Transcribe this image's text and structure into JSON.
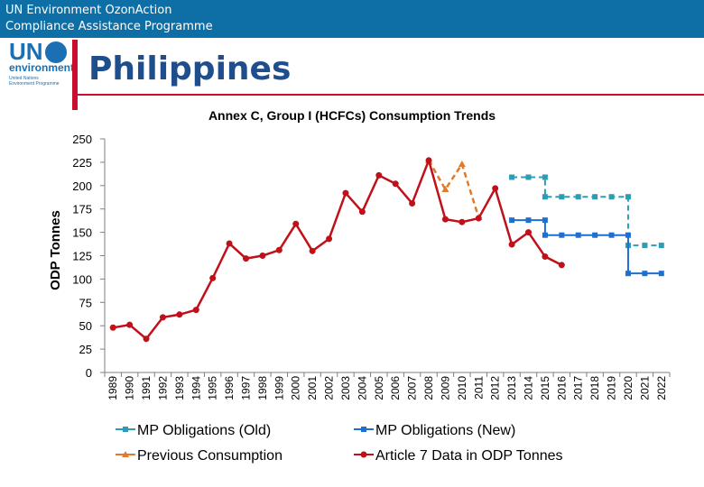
{
  "header": {
    "line1": "UN Environment OzonAction",
    "line2": "Compliance Assistance Programme"
  },
  "logo": {
    "un": "UN",
    "environment": "environment",
    "small1": "United Nations",
    "small2": "Environment Programme"
  },
  "country": "Philippines",
  "colors": {
    "topbar": "#0d6fa6",
    "accent_red": "#c8102e",
    "mp_old": "#2e9db4",
    "mp_new": "#1f6fd1",
    "previous": "#e07b2e",
    "article7": "#c0101a"
  },
  "chart_data": {
    "type": "line",
    "title": "Annex C, Group I (HCFCs) Consumption Trends",
    "ylabel": "ODP Tonnes",
    "xlabel": "",
    "ylim": [
      0,
      250
    ],
    "yticks": [
      "0",
      "25",
      "50",
      "75",
      "100",
      "125",
      "150",
      "175",
      "200",
      "225",
      "250"
    ],
    "categories": [
      "1989",
      "1990",
      "1991",
      "1992",
      "1993",
      "1994",
      "1995",
      "1996",
      "1997",
      "1998",
      "1999",
      "2000",
      "2001",
      "2002",
      "2003",
      "2004",
      "2005",
      "2006",
      "2007",
      "2008",
      "2009",
      "2010",
      "2011",
      "2012",
      "2013",
      "2014",
      "2015",
      "2016",
      "2017",
      "2018",
      "2019",
      "2020",
      "2021",
      "2022"
    ],
    "grid": false,
    "series": [
      {
        "name": "MP Obligations (Old)",
        "style": "dashed-step",
        "points": [
          {
            "x": "2013",
            "y": 209
          },
          {
            "x": "2014",
            "y": 209
          },
          {
            "x": "2015",
            "y": 209
          },
          {
            "x": "2015",
            "y": 188
          },
          {
            "x": "2016",
            "y": 188
          },
          {
            "x": "2017",
            "y": 188
          },
          {
            "x": "2018",
            "y": 188
          },
          {
            "x": "2019",
            "y": 188
          },
          {
            "x": "2020",
            "y": 188
          },
          {
            "x": "2020",
            "y": 136
          },
          {
            "x": "2021",
            "y": 136
          },
          {
            "x": "2022",
            "y": 136
          }
        ]
      },
      {
        "name": "MP Obligations (New)",
        "style": "solid-step",
        "points": [
          {
            "x": "2013",
            "y": 163
          },
          {
            "x": "2014",
            "y": 163
          },
          {
            "x": "2015",
            "y": 163
          },
          {
            "x": "2015",
            "y": 147
          },
          {
            "x": "2016",
            "y": 147
          },
          {
            "x": "2017",
            "y": 147
          },
          {
            "x": "2018",
            "y": 147
          },
          {
            "x": "2019",
            "y": 147
          },
          {
            "x": "2020",
            "y": 147
          },
          {
            "x": "2020",
            "y": 106
          },
          {
            "x": "2021",
            "y": 106
          },
          {
            "x": "2022",
            "y": 106
          }
        ]
      },
      {
        "name": "Previous Consumption",
        "style": "dashed",
        "points": [
          {
            "x": "2008",
            "y": 227
          },
          {
            "x": "2009",
            "y": 196
          },
          {
            "x": "2010",
            "y": 223
          },
          {
            "x": "2011",
            "y": 166
          }
        ]
      },
      {
        "name": "Article 7 Data in ODP Tonnes",
        "style": "solid",
        "points": [
          {
            "x": "1989",
            "y": 48
          },
          {
            "x": "1990",
            "y": 51
          },
          {
            "x": "1991",
            "y": 36
          },
          {
            "x": "1992",
            "y": 59
          },
          {
            "x": "1993",
            "y": 62
          },
          {
            "x": "1994",
            "y": 67
          },
          {
            "x": "1995",
            "y": 101
          },
          {
            "x": "1996",
            "y": 138
          },
          {
            "x": "1997",
            "y": 122
          },
          {
            "x": "1998",
            "y": 125
          },
          {
            "x": "1999",
            "y": 131
          },
          {
            "x": "2000",
            "y": 159
          },
          {
            "x": "2001",
            "y": 130
          },
          {
            "x": "2002",
            "y": 143
          },
          {
            "x": "2003",
            "y": 192
          },
          {
            "x": "2004",
            "y": 172
          },
          {
            "x": "2005",
            "y": 211
          },
          {
            "x": "2006",
            "y": 202
          },
          {
            "x": "2007",
            "y": 181
          },
          {
            "x": "2008",
            "y": 227
          },
          {
            "x": "2009",
            "y": 164
          },
          {
            "x": "2010",
            "y": 161
          },
          {
            "x": "2011",
            "y": 165
          },
          {
            "x": "2012",
            "y": 197
          },
          {
            "x": "2013",
            "y": 137
          },
          {
            "x": "2014",
            "y": 150
          },
          {
            "x": "2015",
            "y": 124
          },
          {
            "x": "2016",
            "y": 115
          }
        ]
      }
    ],
    "legend": {
      "position": "bottom",
      "order": [
        "MP Obligations (Old)",
        "MP Obligations (New)",
        "Previous Consumption",
        "Article 7 Data in ODP Tonnes"
      ]
    }
  }
}
